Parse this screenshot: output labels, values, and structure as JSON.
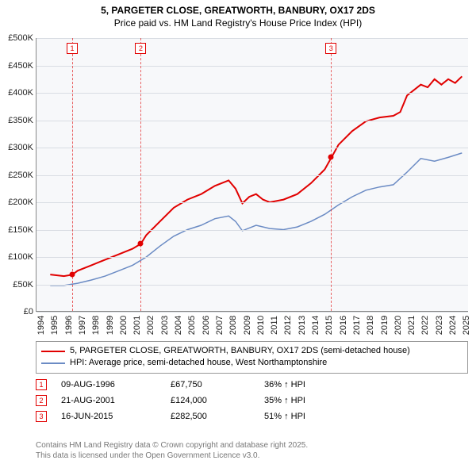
{
  "title": {
    "line1": "5, PARGETER CLOSE, GREATWORTH, BANBURY, OX17 2DS",
    "line2": "Price paid vs. HM Land Registry's House Price Index (HPI)"
  },
  "chart": {
    "type": "line",
    "background_color": "#f7f8fa",
    "grid_color": "#d9dde3",
    "xlim": [
      1994,
      2025.5
    ],
    "ylim": [
      0,
      500000
    ],
    "ytick_step": 50000,
    "yticks": [
      "£0",
      "£50K",
      "£100K",
      "£150K",
      "£200K",
      "£250K",
      "£300K",
      "£350K",
      "£400K",
      "£450K",
      "£500K"
    ],
    "xticks": [
      1994,
      1995,
      1996,
      1997,
      1998,
      1999,
      2000,
      2001,
      2002,
      2003,
      2004,
      2005,
      2006,
      2007,
      2008,
      2009,
      2010,
      2011,
      2012,
      2013,
      2014,
      2015,
      2016,
      2017,
      2018,
      2019,
      2020,
      2021,
      2022,
      2023,
      2024,
      2025
    ],
    "series": [
      {
        "name": "price_paid",
        "color": "#e10000",
        "width": 2,
        "points": [
          [
            1995,
            68000
          ],
          [
            1996,
            65000
          ],
          [
            1996.6,
            67750
          ],
          [
            1997,
            75000
          ],
          [
            1998,
            85000
          ],
          [
            1999,
            95000
          ],
          [
            2000,
            105000
          ],
          [
            2001,
            115000
          ],
          [
            2001.6,
            124000
          ],
          [
            2002,
            140000
          ],
          [
            2003,
            165000
          ],
          [
            2004,
            190000
          ],
          [
            2005,
            205000
          ],
          [
            2006,
            215000
          ],
          [
            2007,
            230000
          ],
          [
            2008,
            240000
          ],
          [
            2008.5,
            225000
          ],
          [
            2009,
            198000
          ],
          [
            2009.5,
            210000
          ],
          [
            2010,
            215000
          ],
          [
            2010.5,
            205000
          ],
          [
            2011,
            200000
          ],
          [
            2012,
            205000
          ],
          [
            2013,
            215000
          ],
          [
            2014,
            235000
          ],
          [
            2015,
            260000
          ],
          [
            2015.5,
            282500
          ],
          [
            2016,
            305000
          ],
          [
            2017,
            330000
          ],
          [
            2018,
            348000
          ],
          [
            2019,
            355000
          ],
          [
            2020,
            358000
          ],
          [
            2020.5,
            365000
          ],
          [
            2021,
            395000
          ],
          [
            2022,
            415000
          ],
          [
            2022.5,
            410000
          ],
          [
            2023,
            425000
          ],
          [
            2023.5,
            415000
          ],
          [
            2024,
            425000
          ],
          [
            2024.5,
            418000
          ],
          [
            2025,
            430000
          ]
        ]
      },
      {
        "name": "hpi",
        "color": "#6b8bc4",
        "width": 1.5,
        "points": [
          [
            1995,
            48000
          ],
          [
            1996,
            48000
          ],
          [
            1997,
            52000
          ],
          [
            1998,
            58000
          ],
          [
            1999,
            65000
          ],
          [
            2000,
            75000
          ],
          [
            2001,
            85000
          ],
          [
            2002,
            100000
          ],
          [
            2003,
            120000
          ],
          [
            2004,
            138000
          ],
          [
            2005,
            150000
          ],
          [
            2006,
            158000
          ],
          [
            2007,
            170000
          ],
          [
            2008,
            175000
          ],
          [
            2008.5,
            165000
          ],
          [
            2009,
            148000
          ],
          [
            2010,
            158000
          ],
          [
            2011,
            152000
          ],
          [
            2012,
            150000
          ],
          [
            2013,
            155000
          ],
          [
            2014,
            165000
          ],
          [
            2015,
            178000
          ],
          [
            2016,
            195000
          ],
          [
            2017,
            210000
          ],
          [
            2018,
            222000
          ],
          [
            2019,
            228000
          ],
          [
            2020,
            232000
          ],
          [
            2021,
            255000
          ],
          [
            2022,
            280000
          ],
          [
            2023,
            275000
          ],
          [
            2024,
            282000
          ],
          [
            2025,
            290000
          ]
        ]
      }
    ],
    "markers": [
      {
        "n": "1",
        "x": 1996.6,
        "y": 67750,
        "color": "#e10000"
      },
      {
        "n": "2",
        "x": 2001.6,
        "y": 124000,
        "color": "#e10000"
      },
      {
        "n": "3",
        "x": 2015.46,
        "y": 282500,
        "color": "#e10000"
      }
    ]
  },
  "legend": {
    "items": [
      {
        "color": "#e10000",
        "label": "5, PARGETER CLOSE, GREATWORTH, BANBURY, OX17 2DS (semi-detached house)"
      },
      {
        "color": "#6b8bc4",
        "label": "HPI: Average price, semi-detached house, West Northamptonshire"
      }
    ]
  },
  "sales": [
    {
      "n": "1",
      "color": "#e10000",
      "date": "09-AUG-1996",
      "price": "£67,750",
      "hpi": "36% ↑ HPI"
    },
    {
      "n": "2",
      "color": "#e10000",
      "date": "21-AUG-2001",
      "price": "£124,000",
      "hpi": "35% ↑ HPI"
    },
    {
      "n": "3",
      "color": "#e10000",
      "date": "16-JUN-2015",
      "price": "£282,500",
      "hpi": "51% ↑ HPI"
    }
  ],
  "footer": {
    "line1": "Contains HM Land Registry data © Crown copyright and database right 2025.",
    "line2": "This data is licensed under the Open Government Licence v3.0."
  }
}
